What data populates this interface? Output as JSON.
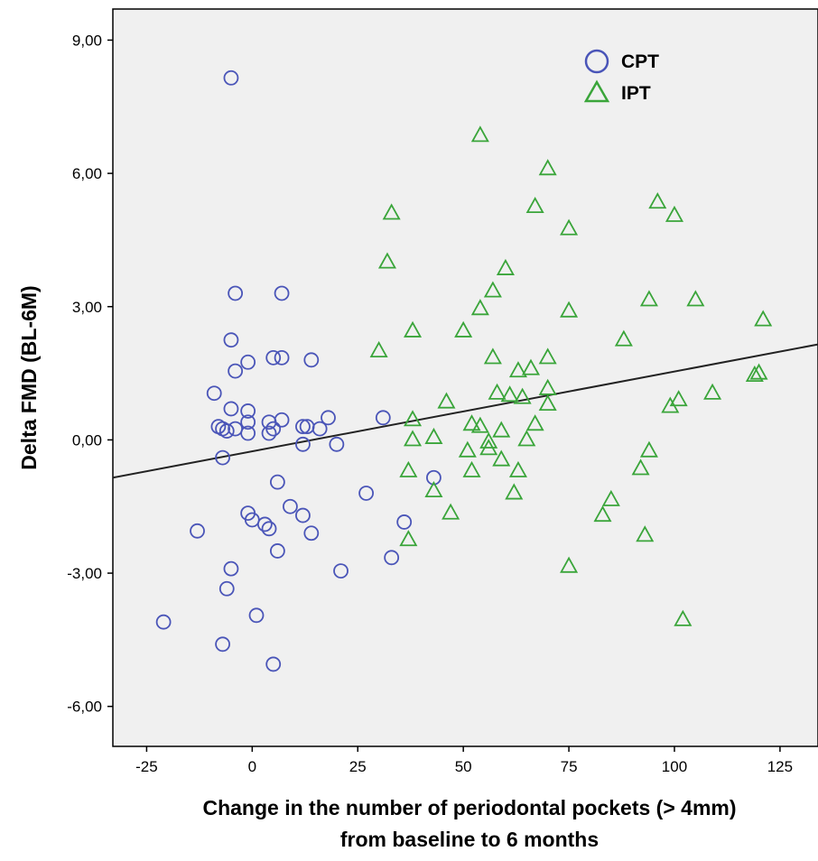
{
  "chart_data": {
    "type": "scatter",
    "xlabel_line1": "Change in the number of periodontal pockets (> 4mm)",
    "xlabel_line2": "from baseline to 6 months",
    "ylabel": "Delta FMD (BL-6M)",
    "xlim": [
      -33,
      134
    ],
    "ylim": [
      -6.9,
      9.7
    ],
    "x_ticks": [
      -25,
      0,
      25,
      50,
      75,
      100,
      125
    ],
    "x_tick_labels": [
      "-25",
      "0",
      "25",
      "50",
      "75",
      "100",
      "125"
    ],
    "y_ticks": [
      -6,
      -3,
      0,
      3,
      6,
      9
    ],
    "y_tick_labels": [
      "-6,00",
      "-3,00",
      "0,00",
      "3,00",
      "6,00",
      "9,00"
    ],
    "legend_position": "top-right",
    "fit_line": {
      "x": [
        -33,
        134
      ],
      "y": [
        -0.85,
        2.15
      ]
    },
    "series": [
      {
        "name": "CPT",
        "marker": "circle",
        "color": "#4a55b8",
        "points": [
          [
            -5,
            8.15
          ],
          [
            -4,
            3.3
          ],
          [
            7,
            3.3
          ],
          [
            -5,
            2.25
          ],
          [
            -4,
            1.55
          ],
          [
            -1,
            1.75
          ],
          [
            5,
            1.85
          ],
          [
            7,
            1.85
          ],
          [
            14,
            1.8
          ],
          [
            -9,
            1.05
          ],
          [
            -5,
            0.7
          ],
          [
            -1,
            0.65
          ],
          [
            -8,
            0.3
          ],
          [
            -7,
            0.25
          ],
          [
            -6,
            0.2
          ],
          [
            -4,
            0.25
          ],
          [
            -1,
            0.4
          ],
          [
            -1,
            0.15
          ],
          [
            4,
            0.4
          ],
          [
            4,
            0.15
          ],
          [
            5,
            0.25
          ],
          [
            7,
            0.45
          ],
          [
            12,
            0.3
          ],
          [
            13,
            0.3
          ],
          [
            16,
            0.25
          ],
          [
            18,
            0.5
          ],
          [
            31,
            0.5
          ],
          [
            -7,
            -0.4
          ],
          [
            12,
            -0.1
          ],
          [
            20,
            -0.1
          ],
          [
            6,
            -0.95
          ],
          [
            43,
            -0.85
          ],
          [
            27,
            -1.2
          ],
          [
            9,
            -1.5
          ],
          [
            -1,
            -1.65
          ],
          [
            0,
            -1.8
          ],
          [
            3,
            -1.9
          ],
          [
            4,
            -2.0
          ],
          [
            12,
            -1.7
          ],
          [
            14,
            -2.1
          ],
          [
            -13,
            -2.05
          ],
          [
            36,
            -1.85
          ],
          [
            6,
            -2.5
          ],
          [
            -5,
            -2.9
          ],
          [
            21,
            -2.95
          ],
          [
            33,
            -2.65
          ],
          [
            -6,
            -3.35
          ],
          [
            1,
            -3.95
          ],
          [
            -21,
            -4.1
          ],
          [
            -7,
            -4.6
          ],
          [
            5,
            -5.05
          ]
        ]
      },
      {
        "name": "IPT",
        "marker": "triangle",
        "color": "#3aa53a",
        "points": [
          [
            54,
            6.85
          ],
          [
            70,
            6.1
          ],
          [
            33,
            5.1
          ],
          [
            67,
            5.25
          ],
          [
            75,
            4.75
          ],
          [
            96,
            5.35
          ],
          [
            100,
            5.05
          ],
          [
            32,
            4.0
          ],
          [
            60,
            3.85
          ],
          [
            57,
            3.35
          ],
          [
            54,
            2.95
          ],
          [
            94,
            3.15
          ],
          [
            105,
            3.15
          ],
          [
            75,
            2.9
          ],
          [
            121,
            2.7
          ],
          [
            38,
            2.45
          ],
          [
            50,
            2.45
          ],
          [
            88,
            2.25
          ],
          [
            30,
            2.0
          ],
          [
            57,
            1.85
          ],
          [
            70,
            1.85
          ],
          [
            63,
            1.55
          ],
          [
            66,
            1.6
          ],
          [
            120,
            1.5
          ],
          [
            119,
            1.45
          ],
          [
            58,
            1.05
          ],
          [
            61,
            1.0
          ],
          [
            64,
            0.95
          ],
          [
            70,
            1.15
          ],
          [
            109,
            1.05
          ],
          [
            101,
            0.9
          ],
          [
            99,
            0.75
          ],
          [
            46,
            0.85
          ],
          [
            70,
            0.8
          ],
          [
            38,
            0.45
          ],
          [
            52,
            0.35
          ],
          [
            54,
            0.3
          ],
          [
            67,
            0.35
          ],
          [
            59,
            0.2
          ],
          [
            38,
            0.0
          ],
          [
            43,
            0.05
          ],
          [
            56,
            -0.05
          ],
          [
            65,
            0.0
          ],
          [
            51,
            -0.25
          ],
          [
            56,
            -0.2
          ],
          [
            59,
            -0.45
          ],
          [
            94,
            -0.25
          ],
          [
            37,
            -0.7
          ],
          [
            52,
            -0.7
          ],
          [
            63,
            -0.7
          ],
          [
            92,
            -0.65
          ],
          [
            43,
            -1.15
          ],
          [
            62,
            -1.2
          ],
          [
            47,
            -1.65
          ],
          [
            85,
            -1.35
          ],
          [
            83,
            -1.7
          ],
          [
            37,
            -2.25
          ],
          [
            93,
            -2.15
          ],
          [
            75,
            -2.85
          ],
          [
            102,
            -4.05
          ]
        ]
      }
    ]
  }
}
